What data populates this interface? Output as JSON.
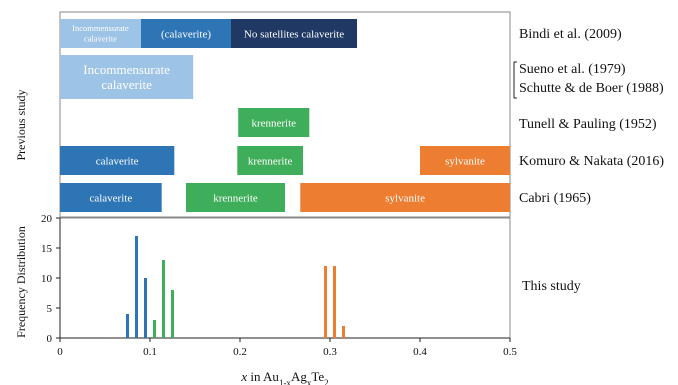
{
  "chart_data": [
    {
      "type": "range_bars",
      "ylabel": "Previous study",
      "xlim": [
        0,
        0.5
      ],
      "colors": {
        "calaverite_dark": "#2e75b6",
        "calaverite_light": "#9dc3e6",
        "calaverite_navy": "#1f3864",
        "krennerite": "#3fae5a",
        "sylvanite": "#ed7d31"
      },
      "studies": [
        {
          "reference": "Bindi et al. (2009)",
          "bars": [
            {
              "label": "Incommensurate calaverite",
              "lines": [
                "Incommensurate",
                "calaverite"
              ],
              "x_start": 0.0,
              "x_end": 0.09,
              "color": "#9dc3e6"
            },
            {
              "label": "(calaverite)",
              "lines": [
                "(calaverite)"
              ],
              "x_start": 0.09,
              "x_end": 0.19,
              "color": "#2e75b6"
            },
            {
              "label": "No satellites calaverite",
              "lines": [
                "No satellites calaverite"
              ],
              "x_start": 0.19,
              "x_end": 0.33,
              "color": "#1f3864"
            }
          ]
        },
        {
          "reference": "Sueno et al. (1979)",
          "reference2": "Schutte & de Boer (1988)",
          "bars": [
            {
              "label": "Incommensurate calaverite",
              "lines": [
                "Incommensurate",
                "calaverite"
              ],
              "x_start": 0.0,
              "x_end": 0.148,
              "color": "#9dc3e6"
            }
          ]
        },
        {
          "reference": "Tunell & Pauling (1952)",
          "bars": [
            {
              "label": "krennerite",
              "lines": [
                "krennerite"
              ],
              "x_start": 0.198,
              "x_end": 0.277,
              "color": "#3fae5a"
            }
          ]
        },
        {
          "reference": "Komuro & Nakata (2016)",
          "bars": [
            {
              "label": "calaverite",
              "lines": [
                "calaverite"
              ],
              "x_start": 0.0,
              "x_end": 0.127,
              "color": "#2e75b6"
            },
            {
              "label": "krennerite",
              "lines": [
                "krennerite"
              ],
              "x_start": 0.197,
              "x_end": 0.27,
              "color": "#3fae5a"
            },
            {
              "label": "sylvanite",
              "lines": [
                "sylvanite"
              ],
              "x_start": 0.4,
              "x_end": 0.5,
              "color": "#ed7d31"
            }
          ]
        },
        {
          "reference": "Cabri (1965)",
          "bars": [
            {
              "label": "calaverite",
              "lines": [
                "calaverite"
              ],
              "x_start": 0.0,
              "x_end": 0.113,
              "color": "#2e75b6"
            },
            {
              "label": "krennerite",
              "lines": [
                "krennerite"
              ],
              "x_start": 0.14,
              "x_end": 0.25,
              "color": "#3fae5a"
            },
            {
              "label": "sylvanite",
              "lines": [
                "sylvanite"
              ],
              "x_start": 0.267,
              "x_end": 0.5,
              "color": "#ed7d31"
            }
          ]
        }
      ]
    },
    {
      "type": "bar",
      "ylabel": "Frequency Distribution",
      "xlabel_prefix": "x in Au",
      "xlabel_sub1": "1-x",
      "xlabel_mid": "Ag",
      "xlabel_sub2": "x",
      "xlabel_te": "Te",
      "xlabel_sub3": "2",
      "annotation": "This study",
      "xlim": [
        0,
        0.5
      ],
      "ylim": [
        0,
        20
      ],
      "xticks": [
        "0",
        "0.1",
        "0.2",
        "0.3",
        "0.4",
        "0.5"
      ],
      "xtick_values": [
        0,
        0.1,
        0.2,
        0.3,
        0.4,
        0.5
      ],
      "yticks": [
        "0",
        "5",
        "10",
        "15",
        "20"
      ],
      "ytick_values": [
        0,
        5,
        10,
        15,
        20
      ],
      "series": [
        {
          "color": "#2e75b6",
          "x": [
            0.075,
            0.085,
            0.095
          ],
          "values": [
            4,
            17,
            10
          ]
        },
        {
          "color": "#3fae5a",
          "x": [
            0.105,
            0.115,
            0.125
          ],
          "values": [
            3,
            13,
            8
          ]
        },
        {
          "color": "#ed7d31",
          "x": [
            0.295,
            0.305,
            0.315
          ],
          "values": [
            12,
            12,
            2
          ]
        }
      ]
    }
  ]
}
